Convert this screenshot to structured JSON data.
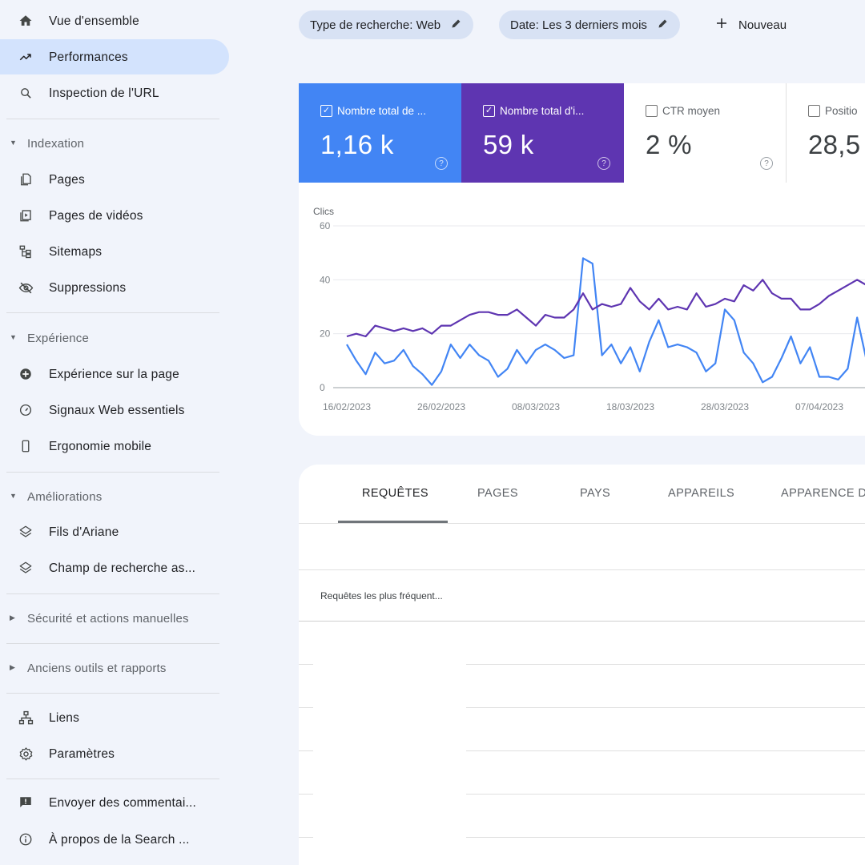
{
  "sidebar": {
    "overview": "Vue d'ensemble",
    "performance": "Performances",
    "url_inspection": "Inspection de l'URL",
    "indexation": {
      "title": "Indexation",
      "pages": "Pages",
      "video_pages": "Pages de vidéos",
      "sitemaps": "Sitemaps",
      "removals": "Suppressions"
    },
    "experience": {
      "title": "Expérience",
      "page_experience": "Expérience sur la page",
      "core_web_vitals": "Signaux Web essentiels",
      "mobile_usability": "Ergonomie mobile"
    },
    "enhancements": {
      "title": "Améliorations",
      "breadcrumbs": "Fils d'Ariane",
      "sitelinks_searchbox": "Champ de recherche as..."
    },
    "security": "Sécurité et actions manuelles",
    "legacy": "Anciens outils et rapports",
    "links": "Liens",
    "settings": "Paramètres",
    "feedback": "Envoyer des commentai...",
    "about": "À propos de la Search ..."
  },
  "filters": {
    "search_type": "Type de recherche: Web",
    "date": "Date: Les 3 derniers mois",
    "new": "Nouveau"
  },
  "metrics": {
    "clicks": {
      "label": "Nombre total de ...",
      "value": "1,16 k",
      "checked": true,
      "color": "#4285f4"
    },
    "impressions": {
      "label": "Nombre total d'i...",
      "value": "59 k",
      "checked": true,
      "color": "#5e35b1"
    },
    "ctr": {
      "label": "CTR moyen",
      "value": "2 %",
      "checked": false
    },
    "position": {
      "label": "Positio",
      "value": "28,5",
      "checked": false
    }
  },
  "chart_data": {
    "type": "line",
    "ylabel": "Clics",
    "ylim": [
      0,
      60
    ],
    "yticks": [
      0,
      20,
      40,
      60
    ],
    "x_tick_labels": [
      "16/02/2023",
      "26/02/2023",
      "08/03/2023",
      "18/03/2023",
      "28/03/2023",
      "07/04/2023"
    ],
    "x_start": "2023-02-16",
    "series": [
      {
        "color": "#4285f4",
        "values": [
          16,
          10,
          5,
          13,
          9,
          10,
          14,
          8,
          5,
          1,
          6,
          16,
          11,
          16,
          12,
          10,
          4,
          7,
          14,
          9,
          14,
          16,
          14,
          11,
          12,
          48,
          46,
          12,
          16,
          9,
          15,
          6,
          17,
          25,
          15,
          16,
          15,
          13,
          6,
          9,
          29,
          25,
          13,
          9,
          2,
          4,
          11,
          19,
          9,
          15,
          4,
          4,
          3,
          7,
          26,
          10
        ]
      },
      {
        "color": "#5e35b1",
        "values": [
          19,
          20,
          19,
          23,
          22,
          21,
          22,
          21,
          22,
          20,
          23,
          23,
          25,
          27,
          28,
          28,
          27,
          27,
          29,
          26,
          23,
          27,
          26,
          26,
          29,
          35,
          29,
          31,
          30,
          31,
          37,
          32,
          29,
          33,
          29,
          30,
          29,
          35,
          30,
          31,
          33,
          32,
          38,
          36,
          40,
          35,
          33,
          33,
          29,
          29,
          31,
          34,
          36,
          38,
          40,
          38
        ]
      }
    ]
  },
  "table": {
    "tabs": [
      "REQUÊTES",
      "PAGES",
      "PAYS",
      "APPAREILS",
      "APPARENCE D"
    ],
    "active_tab": "REQUÊTES",
    "column_header": "Requêtes les plus fréquent..."
  }
}
